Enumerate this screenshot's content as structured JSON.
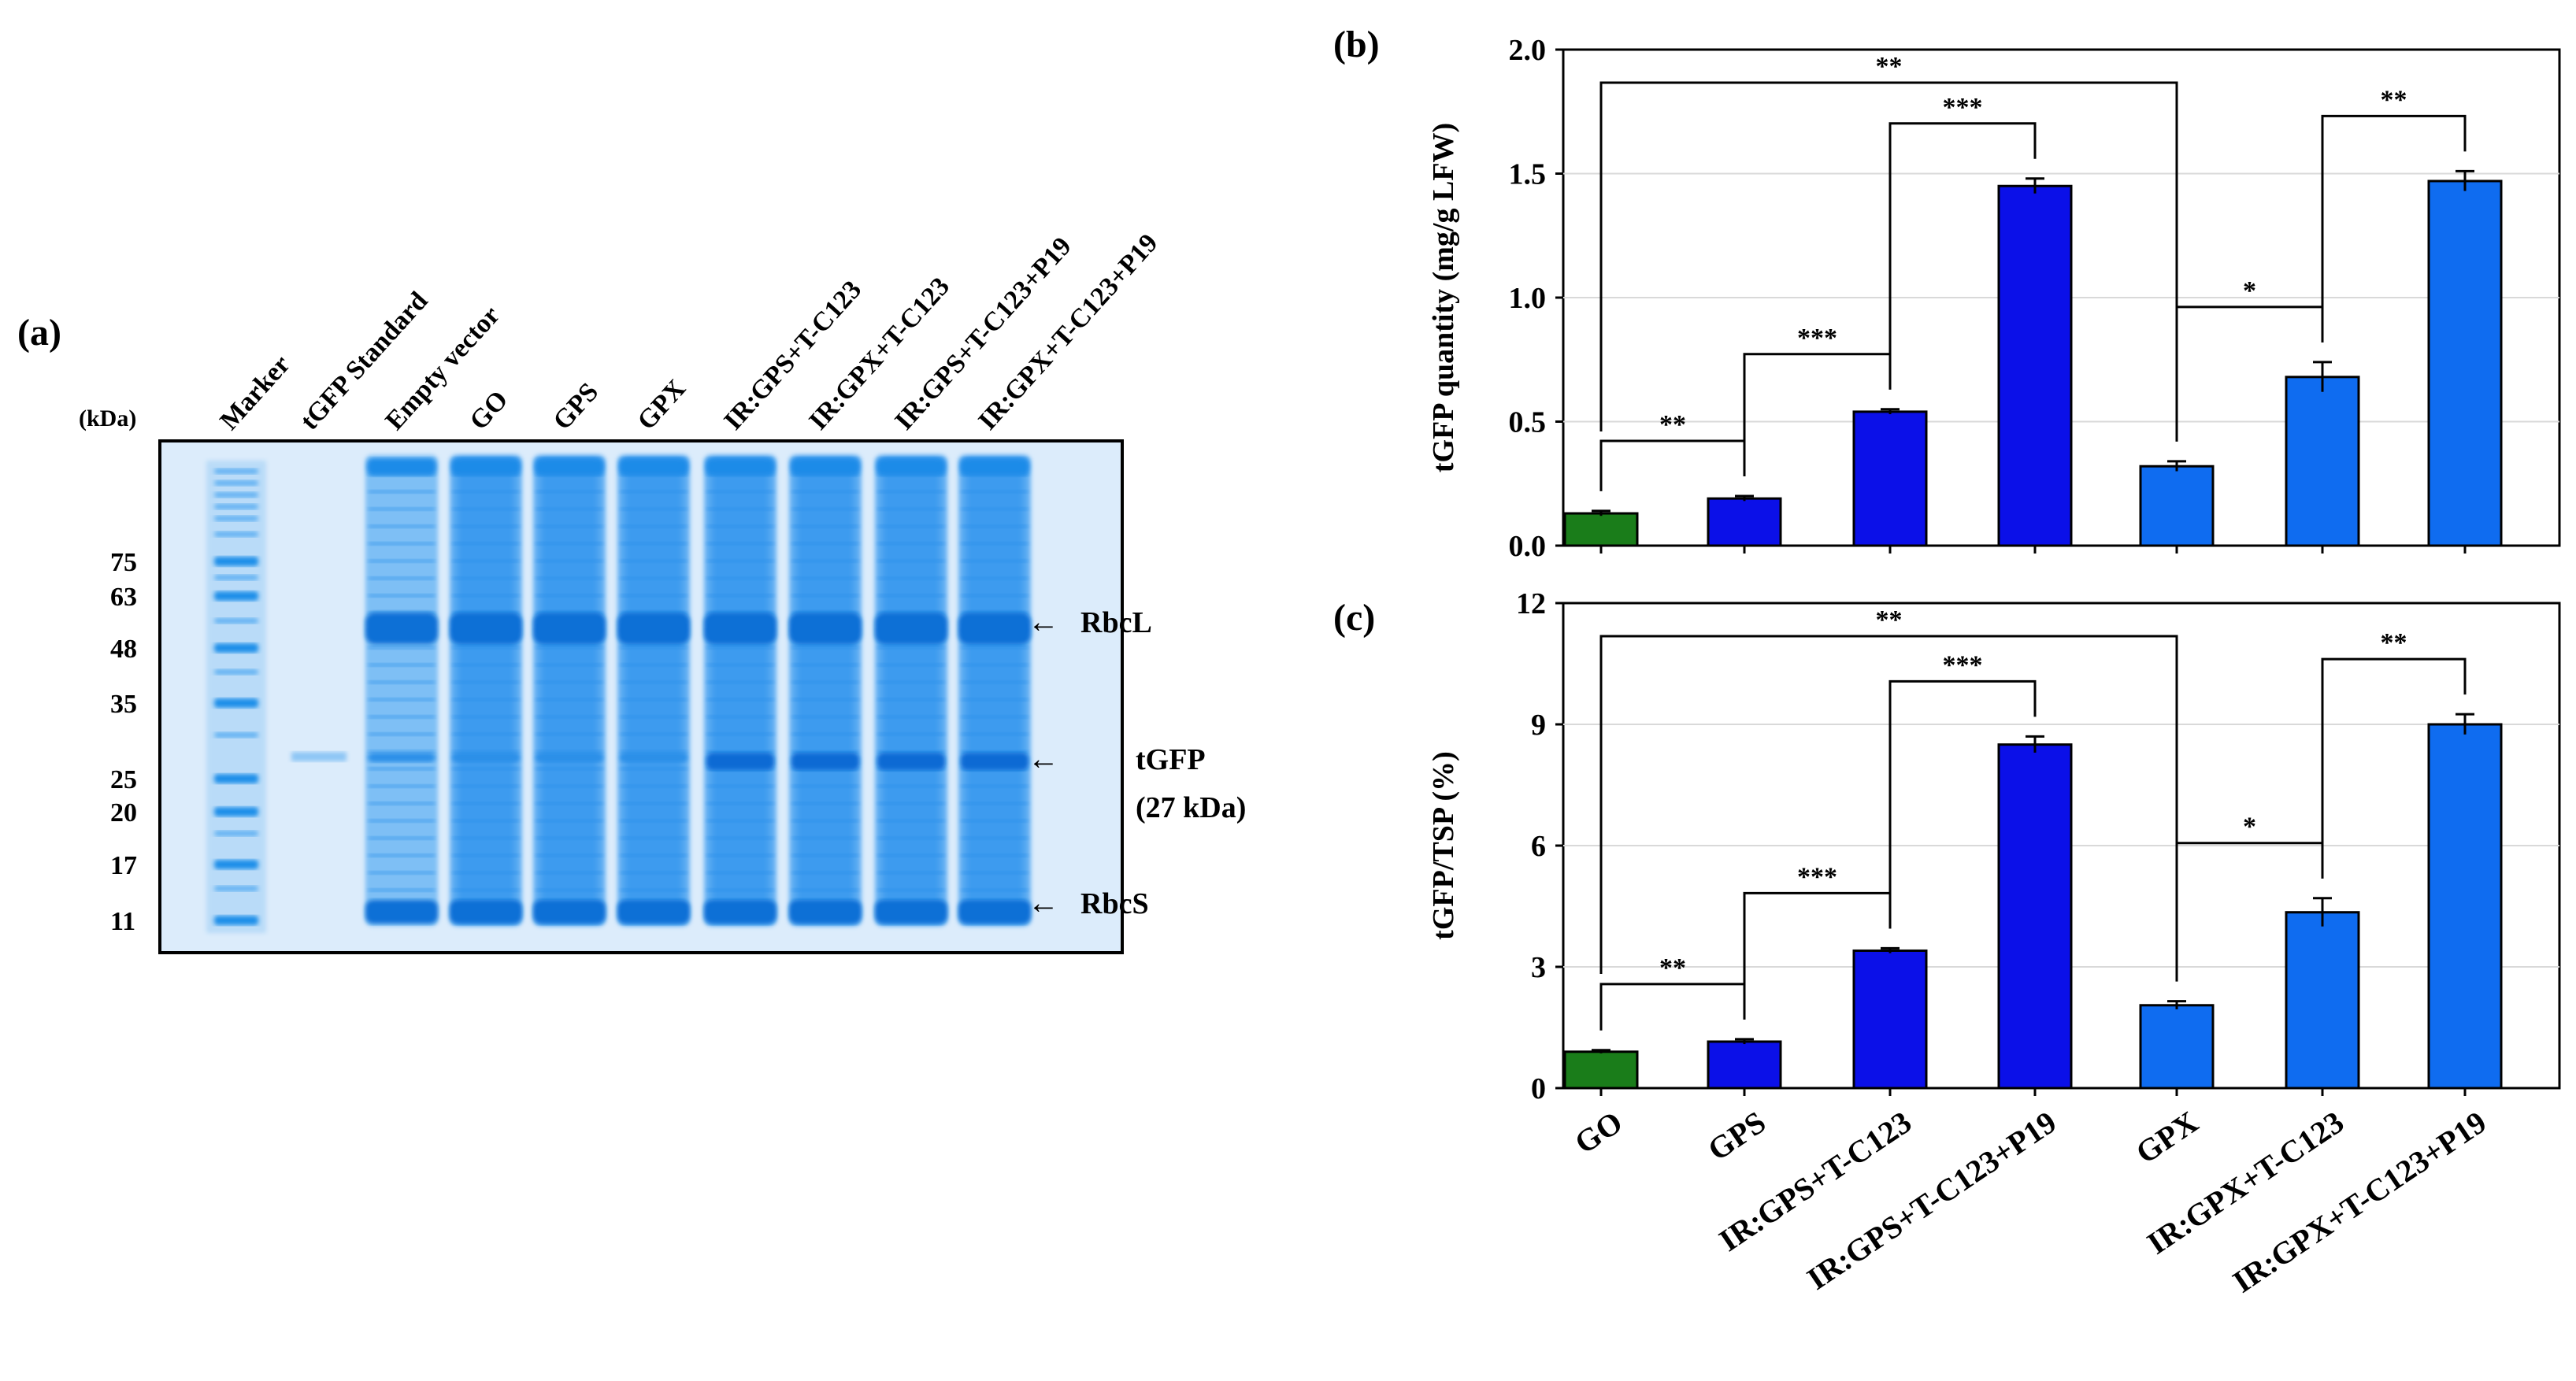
{
  "panel_a": {
    "label": "(a)",
    "kda_label": "(kDa)",
    "lane_labels": [
      "Marker",
      "tGFP Standard",
      "Empty vector",
      "GO",
      "GPS",
      "GPX",
      "IR:GPS+T-C123",
      "IR:GPX+T-C123",
      "IR:GPS+T-C123+P19",
      "IR:GPX+T-C123+P19"
    ],
    "marker_sizes": [
      "75",
      "63",
      "48",
      "35",
      "25",
      "20",
      "17",
      "11"
    ],
    "annotations": [
      {
        "arrow": "←",
        "text": "RbcL"
      },
      {
        "arrow": "←",
        "text": "tGFP",
        "sub": "(27 kDa)"
      },
      {
        "arrow": "←",
        "text": "RbcS"
      }
    ],
    "colors": {
      "gel_bg": "#dcecfb",
      "band": "#1a8be8",
      "band_dark": "#0a6fd6",
      "frame": "#000000"
    }
  },
  "chart_data": [
    {
      "type": "bar",
      "panel": "(b)",
      "ylabel": "tGFP quantity (mg/g LFW)",
      "ylim": [
        0,
        2.0
      ],
      "yticks": [
        "0.0",
        "0.5",
        "1.0",
        "1.5",
        "2.0"
      ],
      "ytick_values": [
        0,
        0.5,
        1.0,
        1.5,
        2.0
      ],
      "categories": [
        "GO",
        "GPS",
        "IR:GPS+T-C123",
        "IR:GPS+T-C123+P19",
        "GPX",
        "IR:GPX+T-C123",
        "IR:GPX+T-C123+P19"
      ],
      "values": [
        0.13,
        0.19,
        0.54,
        1.45,
        0.32,
        0.68,
        1.47
      ],
      "errors": [
        0.01,
        0.01,
        0.01,
        0.03,
        0.02,
        0.06,
        0.04
      ],
      "colors": [
        "#1a7d1a",
        "#0b10e8",
        "#0b10e8",
        "#0b10e8",
        "#0f6cf0",
        "#0f6cf0",
        "#0f6cf0"
      ],
      "significance": [
        {
          "from": 0,
          "to": 4,
          "label": "**"
        },
        {
          "from": 2,
          "to": 3,
          "label": "***"
        },
        {
          "from": 5,
          "to": 6,
          "label": "**"
        },
        {
          "from": 1,
          "to": 2,
          "label": "***"
        },
        {
          "from": 4,
          "to": 5,
          "label": "*"
        },
        {
          "from": 0,
          "to": 1,
          "label": "**"
        }
      ]
    },
    {
      "type": "bar",
      "panel": "(c)",
      "ylabel": "tGFP/TSP (%)",
      "ylim": [
        0,
        12
      ],
      "yticks": [
        "0",
        "3",
        "6",
        "9",
        "12"
      ],
      "ytick_values": [
        0,
        3,
        6,
        9,
        12
      ],
      "categories": [
        "GO",
        "GPS",
        "IR:GPS+T-C123",
        "IR:GPS+T-C123+P19",
        "GPX",
        "IR:GPX+T-C123",
        "IR:GPX+T-C123+P19"
      ],
      "values": [
        0.9,
        1.15,
        3.4,
        8.5,
        2.05,
        4.35,
        9.0
      ],
      "errors": [
        0.04,
        0.06,
        0.06,
        0.2,
        0.1,
        0.35,
        0.25
      ],
      "colors": [
        "#1a7d1a",
        "#0b10e8",
        "#0b10e8",
        "#0b10e8",
        "#0f6cf0",
        "#0f6cf0",
        "#0f6cf0"
      ],
      "significance": [
        {
          "from": 0,
          "to": 4,
          "label": "**"
        },
        {
          "from": 2,
          "to": 3,
          "label": "***"
        },
        {
          "from": 5,
          "to": 6,
          "label": "**"
        },
        {
          "from": 1,
          "to": 2,
          "label": "***"
        },
        {
          "from": 4,
          "to": 5,
          "label": "*"
        },
        {
          "from": 0,
          "to": 1,
          "label": "**"
        }
      ]
    }
  ]
}
